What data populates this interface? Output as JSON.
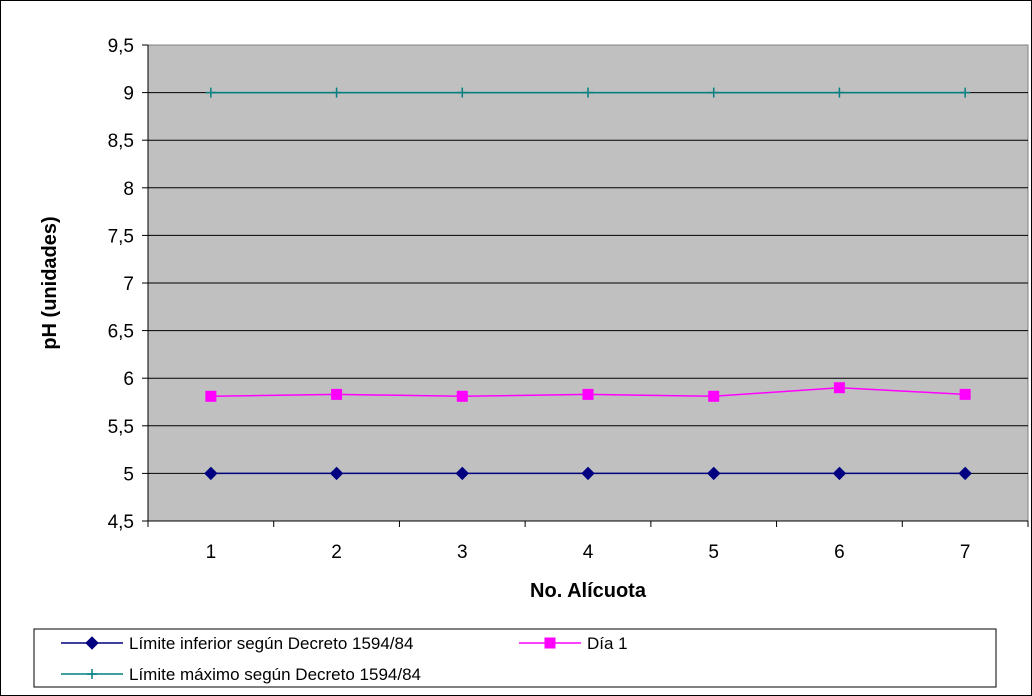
{
  "chart_data": {
    "type": "line",
    "title": "",
    "xlabel": "No. Alícuota",
    "ylabel": "pH (unidades)",
    "categories": [
      "1",
      "2",
      "3",
      "4",
      "5",
      "6",
      "7"
    ],
    "ylim": [
      4.5,
      9.5
    ],
    "yticks": [
      "4,5",
      "5",
      "5,5",
      "6",
      "6,5",
      "7",
      "7,5",
      "8",
      "8,5",
      "9",
      "9,5"
    ],
    "ytick_values": [
      4.5,
      5,
      5.5,
      6,
      6.5,
      7,
      7.5,
      8,
      8.5,
      9,
      9.5
    ],
    "grid": true,
    "plot_background": "#c0c0c0",
    "legend_position": "bottom",
    "series": [
      {
        "name": "Límite inferior según Decreto 1594/84",
        "color": "#000080",
        "marker": "diamond",
        "values": [
          5,
          5,
          5,
          5,
          5,
          5,
          5
        ]
      },
      {
        "name": "Día 1",
        "color": "#ff00ff",
        "marker": "square",
        "values": [
          5.81,
          5.83,
          5.81,
          5.83,
          5.81,
          5.9,
          5.83
        ]
      },
      {
        "name": "Límite máximo según Decreto 1594/84",
        "color": "#008080",
        "marker": "plus",
        "values": [
          9,
          9,
          9,
          9,
          9,
          9,
          9
        ]
      }
    ]
  }
}
